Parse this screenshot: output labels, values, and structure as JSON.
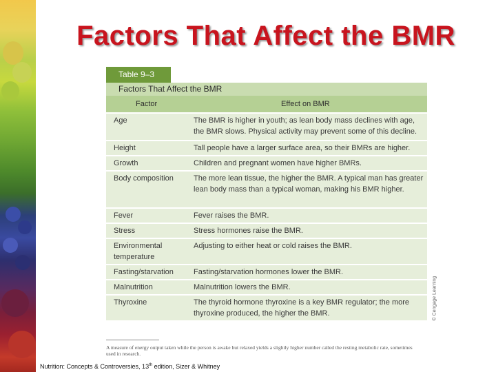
{
  "title": "Factors That Affect the BMR",
  "table": {
    "label": "Table 9–3",
    "title": "Factors That Affect the BMR",
    "headers": [
      "Factor",
      "Effect on BMR"
    ],
    "rows": [
      {
        "factor": "Age",
        "effect": "The BMR is higher in youth; as lean body mass declines with age, the BMR slows. Physical activity may prevent some of this decline."
      },
      {
        "factor": "Height",
        "effect": "Tall people have a larger surface area, so their BMRs are higher."
      },
      {
        "factor": "Growth",
        "effect": "Children and pregnant women have higher BMRs."
      },
      {
        "factor": "Body composition",
        "effect": "The more lean tissue, the higher the BMR. A typical man has greater lean body mass than a typical woman, making his BMR higher."
      },
      {
        "factor": "Fever",
        "effect": "Fever raises the BMR."
      },
      {
        "factor": "Stress",
        "effect": "Stress hormones raise the BMR."
      },
      {
        "factor": "Environmental temperature",
        "effect": "Adjusting to either heat or cold raises the BMR."
      },
      {
        "factor": "Fasting/starvation",
        "effect": "Fasting/starvation hormones lower the BMR."
      },
      {
        "factor": "Malnutrition",
        "effect": "Malnutrition lowers the BMR."
      },
      {
        "factor": "Thyroxine",
        "effect": "The thyroid hormone thyroxine is a key BMR regulator; the more thyroxine produced, the higher the BMR."
      }
    ],
    "credit": "© Cengage Learning"
  },
  "footnote": "A measure of energy output taken while the person is awake but relaxed yields a slightly higher number called the resting metabolic rate, sometimes used in research.",
  "citation": {
    "before": "Nutrition: Concepts & Controversies, 13",
    "sup": "th",
    "after": " edition, Sizer & Whitney"
  },
  "colors": {
    "title": "#c8141e",
    "table_label_bg": "#6f9a3a",
    "table_body_bg": "#e6eeda"
  }
}
